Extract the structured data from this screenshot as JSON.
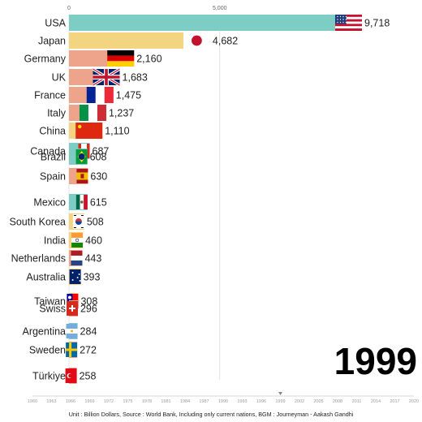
{
  "year": "1999",
  "footer": "Unit : Billion Dollars, Source : World Bank, Including only current nations, BGM : Journeyman - Aakash Gandhi",
  "chart_data": {
    "type": "bar",
    "orientation": "horizontal",
    "xlim": [
      0,
      9718
    ],
    "x_ticks": [
      "0",
      "5,000"
    ],
    "categories": [
      "USA",
      "Japan",
      "Germany",
      "UK",
      "France",
      "Italy",
      "China",
      "Canada",
      "Brazil",
      "Spain",
      "Mexico",
      "South Korea",
      "India",
      "Netherlands",
      "Australia",
      "Taiwan",
      "Swiss",
      "Argentina",
      "Sweden",
      "Türkiye"
    ],
    "values": [
      9718,
      4682,
      2160,
      1683,
      1475,
      1237,
      1110,
      687,
      608,
      630,
      615,
      508,
      460,
      443,
      393,
      308,
      296,
      284,
      272,
      258
    ],
    "value_labels": [
      "9,718",
      "4,682",
      "2,160",
      "1,683",
      "1,475",
      "1,237",
      "1,110",
      "687",
      "608",
      "630",
      "615",
      "508",
      "460",
      "443",
      "393",
      "308",
      "296",
      "284",
      "272",
      "258"
    ],
    "bar_colors": [
      "#7ecdc5",
      "#f3d480",
      "#eea48a",
      "#eea48a",
      "#eea48a",
      "#eea48a",
      "#f3d480",
      "#7ecdc5",
      "#7ecdc5",
      "#eea48a",
      "#7ecdc5",
      "#f3d480",
      "#f3d480",
      "#eea48a",
      "#f3d480",
      "#f3d480",
      "#eea48a",
      "#7ecdc5",
      "#eea48a",
      "#eea48a"
    ],
    "timeline_ticks": [
      "1960",
      "1963",
      "1966",
      "1969",
      "1972",
      "1975",
      "1978",
      "1981",
      "1984",
      "1987",
      "1990",
      "1993",
      "1996",
      "1999",
      "2002",
      "2005",
      "2008",
      "2011",
      "2014",
      "2017",
      "2020"
    ],
    "current_year": 1999
  }
}
